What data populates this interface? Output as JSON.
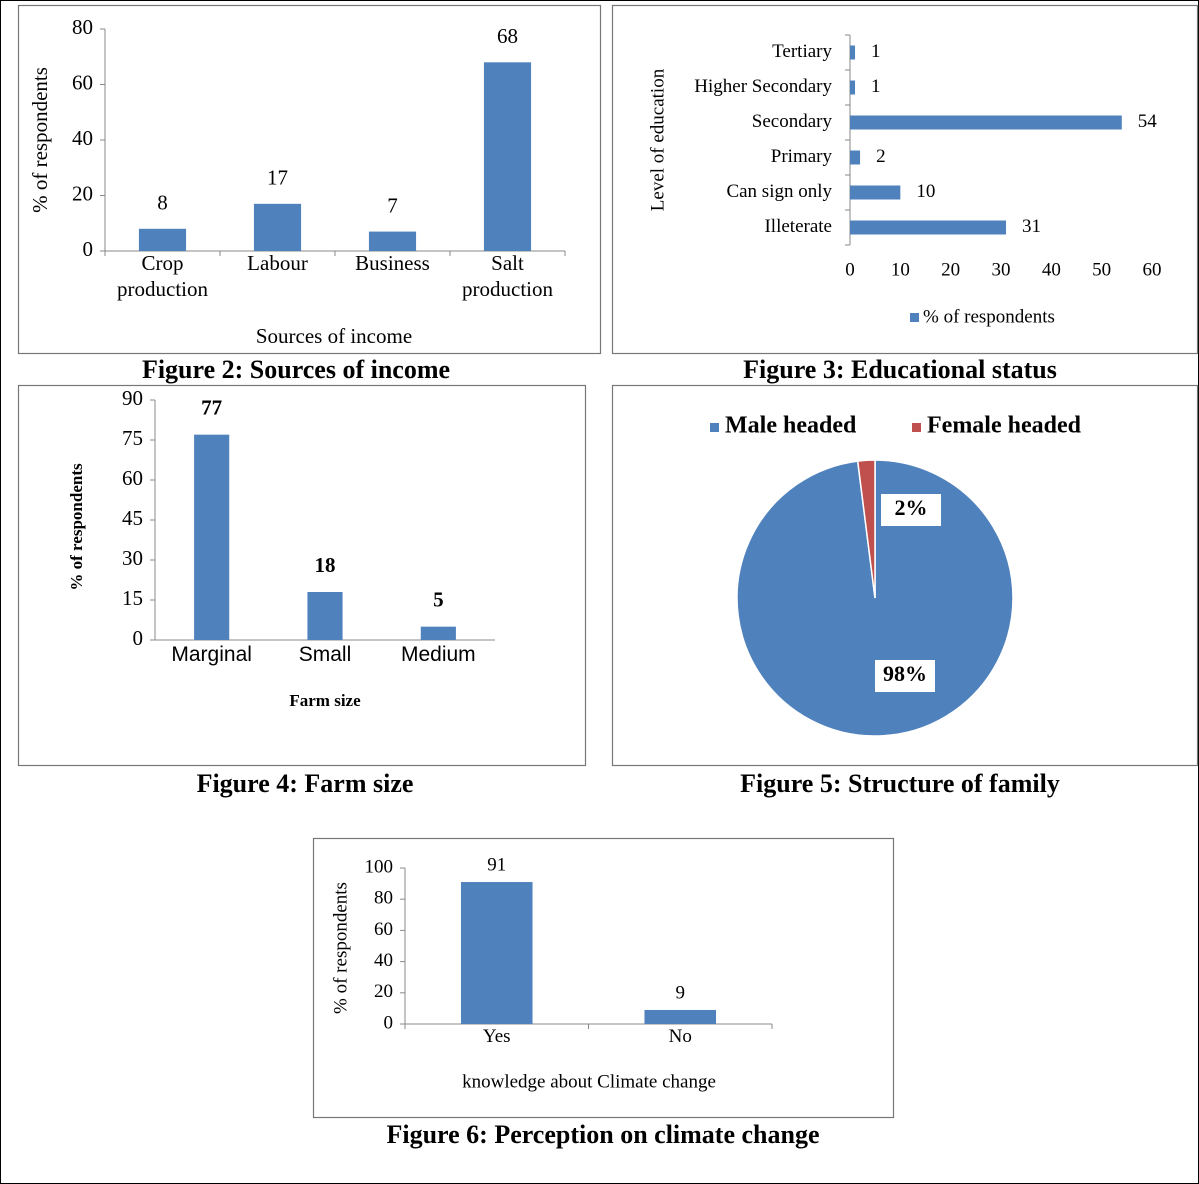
{
  "chart_data": [
    {
      "type": "bar",
      "caption": "Figure 2: Sources of income",
      "categories": [
        "Crop production",
        "Labour",
        "Business",
        "Salt production"
      ],
      "values": [
        8,
        17,
        7,
        68
      ],
      "color": "#4f81bd",
      "ylim": [
        0,
        80
      ],
      "yticks": [
        0,
        20,
        40,
        60,
        80
      ],
      "ylabel": "% of respondents",
      "xlabel": "Sources of income"
    },
    {
      "type": "barh",
      "caption": "Figure 3: Educational status",
      "categories": [
        "Illeterate",
        "Can sign only",
        "Primary",
        "Secondary",
        "Higher Secondary",
        "Tertiary"
      ],
      "series": [
        {
          "name": "% of respondents",
          "color": "#4f81bd",
          "values": [
            31,
            10,
            2,
            54,
            1,
            1
          ]
        }
      ],
      "xlim": [
        0,
        60
      ],
      "xticks": [
        0,
        10,
        20,
        30,
        40,
        50,
        60
      ],
      "ylabel": "Level of education",
      "legend": "bottom"
    },
    {
      "type": "bar",
      "caption": "Figure 4: Farm size",
      "categories": [
        "Marginal",
        "Small",
        "Medium"
      ],
      "values": [
        77,
        18,
        5
      ],
      "color": "#4f81bd",
      "ylim": [
        0,
        90
      ],
      "yticks": [
        0,
        15,
        30,
        45,
        60,
        75,
        90
      ],
      "ylabel": "% of respondents",
      "xlabel": "Farm size"
    },
    {
      "type": "pie",
      "caption": "Figure 5: Structure of family",
      "categories": [
        "Male headed",
        "Female headed"
      ],
      "values": [
        98,
        2
      ],
      "value_labels": [
        "98%",
        "2%"
      ],
      "colors": [
        "#4f81bd",
        "#c0504d"
      ],
      "legend": "top"
    },
    {
      "type": "bar",
      "caption": "Figure 6: Perception on climate change",
      "categories": [
        "Yes",
        "No"
      ],
      "values": [
        91,
        9
      ],
      "color": "#4f81bd",
      "ylim": [
        0,
        100
      ],
      "yticks": [
        0,
        20,
        40,
        60,
        80,
        100
      ],
      "ylabel": "% of respondents",
      "xlabel": "knowledge about Climate change"
    }
  ]
}
